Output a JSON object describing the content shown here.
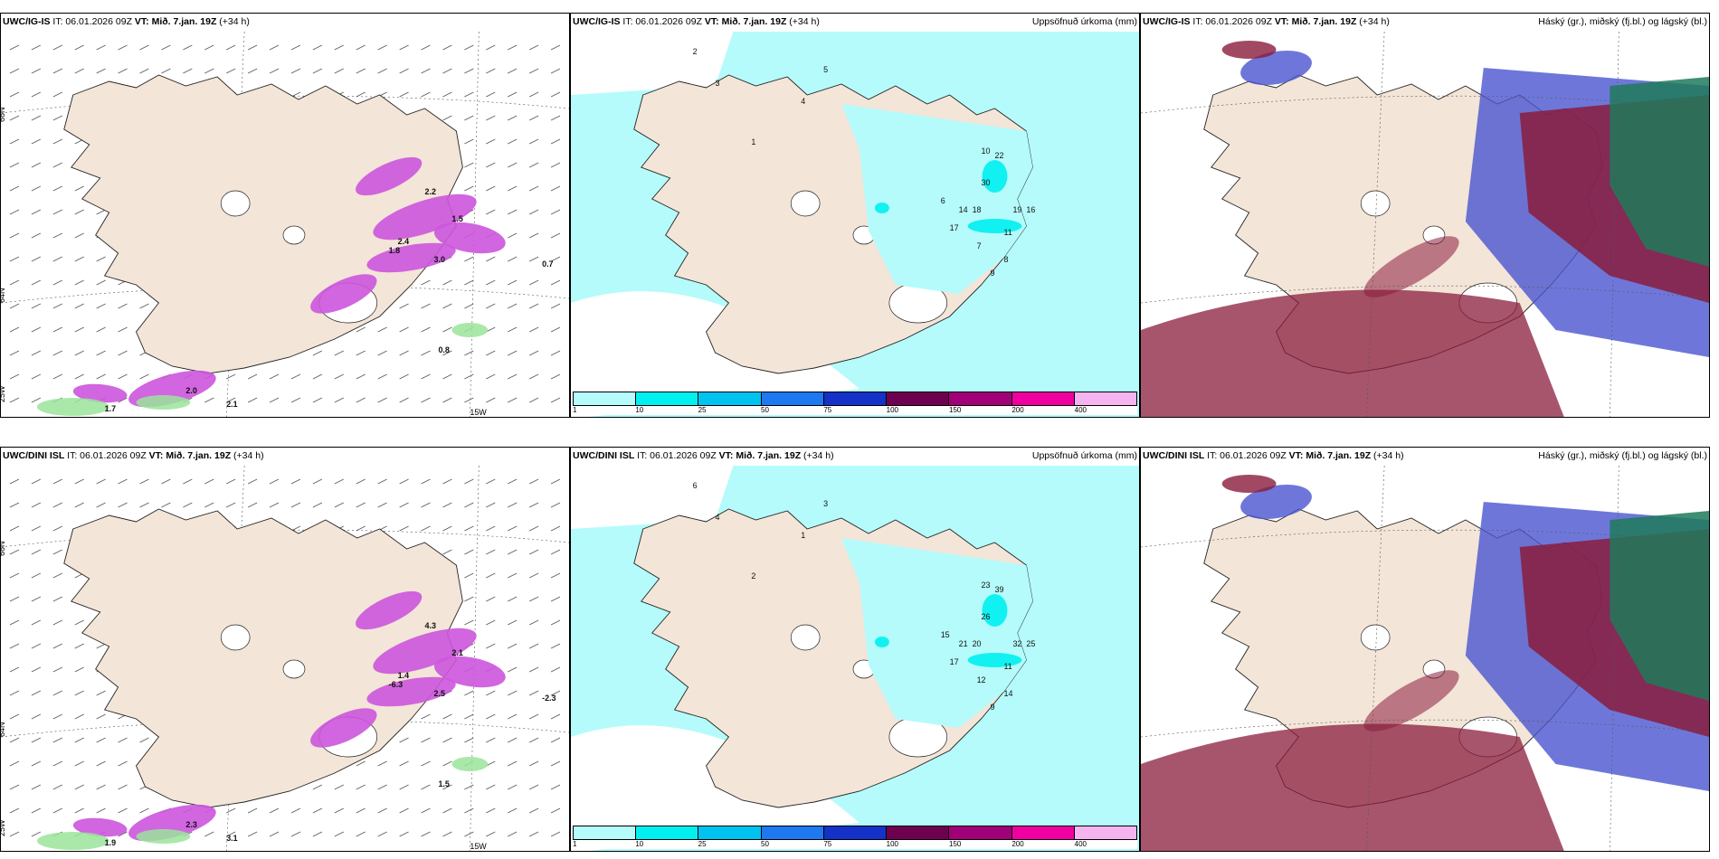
{
  "rows": [
    {
      "model": "UWC/IG-IS",
      "it_label": "IT: 06.01.2026 09Z",
      "vt_label": "VT: Mið. 7.jan. 19Z",
      "lead": "(+34 h)",
      "panels": {
        "wind": {
          "lat_labels": [
            "66N",
            "64N",
            "25W"
          ],
          "lon_label": "15W",
          "value_labels": [
            "1.8",
            "0.7",
            "0.8",
            "2.0",
            "2.1",
            "1.7",
            "2.2",
            "3.0",
            "2.4",
            "1.5"
          ]
        },
        "precip": {
          "title_right": "Uppsöfnuð úrkoma (mm)",
          "value_labels": [
            "2",
            "3",
            "5",
            "4",
            "1",
            "10",
            "22",
            "30",
            "14",
            "18",
            "19",
            "16",
            "17",
            "7",
            "6",
            "8",
            "11",
            "9"
          ]
        },
        "cloud": {
          "title_right": "Háský (gr.), miðský (fj.bl.) og lágský (bl.)"
        }
      }
    },
    {
      "model": "UWC/DINI ISL",
      "it_label": "IT: 06.01.2026 09Z",
      "vt_label": "VT: Mið. 7.jan. 19Z",
      "lead": "(+34 h)",
      "panels": {
        "wind": {
          "lat_labels": [
            "66N",
            "64N",
            "25W"
          ],
          "lon_label": "15W",
          "value_labels": [
            "-6.3",
            "-2.3",
            "1.5",
            "2.3",
            "3.1",
            "1.9",
            "4.3",
            "2.5",
            "1.4",
            "2.1"
          ]
        },
        "precip": {
          "title_right": "Uppsöfnuð úrkoma (mm)",
          "value_labels": [
            "6",
            "4",
            "3",
            "1",
            "2",
            "23",
            "39",
            "26",
            "21",
            "20",
            "32",
            "25",
            "17",
            "12",
            "15",
            "14",
            "11",
            "9"
          ]
        },
        "cloud": {
          "title_right": "Háský (gr.), miðský (fj.bl.) og lágský (bl.)"
        }
      }
    }
  ],
  "colorbar": {
    "ticks": [
      "1",
      "10",
      "25",
      "50",
      "75",
      "100",
      "150",
      "200",
      "400"
    ],
    "colors": [
      "#b5fbfb",
      "#00f0f0",
      "#00c3f0",
      "#1e78f0",
      "#1432c8",
      "#6e0050",
      "#a00078",
      "#f000a0",
      "#f5b4f0"
    ]
  },
  "colors": {
    "land": "#f3e5d8",
    "precip_light": "#b5fbfb",
    "wind_magenta": "#cc55dd",
    "wind_green": "#9be49b",
    "cloud_red": "#8a1c3c",
    "cloud_blue": "#4a55d0",
    "cloud_green": "#1f7a5a"
  }
}
